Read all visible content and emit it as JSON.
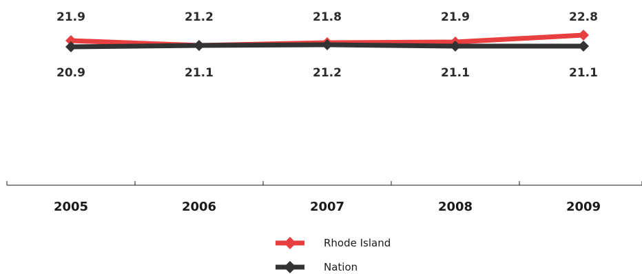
{
  "chart_data": {
    "type": "line",
    "categories": [
      "2005",
      "2006",
      "2007",
      "2008",
      "2009"
    ],
    "series": [
      {
        "name": "Rhode Island",
        "values": [
          21.9,
          21.2,
          21.8,
          21.9,
          22.8
        ],
        "color": "#e84040"
      },
      {
        "name": "Nation",
        "values": [
          20.9,
          21.1,
          21.2,
          21.1,
          21.1
        ],
        "color": "#333333"
      }
    ],
    "value_labels": {
      "Rhode Island": [
        "21.9",
        "21.2",
        "21.8",
        "21.9",
        "22.8"
      ],
      "Nation": [
        "20.9",
        "21.1",
        "21.2",
        "21.1",
        "21.1"
      ]
    },
    "legend_position": "bottom-center",
    "grid": false
  }
}
